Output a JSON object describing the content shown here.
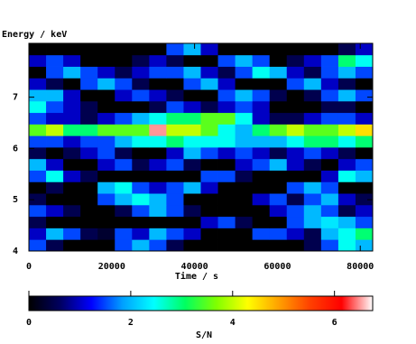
{
  "chart_data": {
    "type": "heatmap",
    "ylabel": "Energy / keV",
    "xlabel": "Time / s",
    "colorbar_label": "S/N",
    "xlim": [
      0,
      83000
    ],
    "ylim": [
      4,
      8.05
    ],
    "xticks": [
      0,
      20000,
      40000,
      60000,
      80000
    ],
    "yticks": [
      4,
      5,
      6,
      7
    ],
    "clim": [
      0,
      6.75
    ],
    "cticks": [
      0,
      2,
      4,
      6
    ],
    "colormap": [
      "#000000",
      "#000060",
      "#0000ff",
      "#00a0ff",
      "#00ffff",
      "#00ff60",
      "#80ff00",
      "#ffff00",
      "#ffa000",
      "#ff4000",
      "#ff0000",
      "#ffffff"
    ],
    "xbins": [
      0,
      4150,
      8300,
      12450,
      16600,
      20750,
      24900,
      29050,
      33200,
      37350,
      41500,
      45650,
      49800,
      53950,
      58100,
      62250,
      66400,
      70550,
      74700,
      78850,
      83000
    ],
    "ybins": [
      4,
      4.225,
      4.45,
      4.675,
      4.9,
      5.125,
      5.35,
      5.575,
      5.8,
      6.025,
      6.25,
      6.475,
      6.7,
      6.925,
      7.15,
      7.375,
      7.6,
      7.825,
      8.05
    ],
    "z": [
      [
        1.5,
        0.5,
        0,
        0,
        0,
        1.5,
        2,
        1.5,
        0.5,
        0,
        0,
        0,
        0,
        0,
        0,
        0,
        0.5,
        1.5,
        2.5,
        2
      ],
      [
        1,
        2,
        1.5,
        0.5,
        0.3,
        1.5,
        1,
        2,
        1.5,
        1,
        0,
        0,
        0,
        1.5,
        1.5,
        1,
        0.5,
        2,
        2.5,
        3
      ],
      [
        0.5,
        0,
        0,
        0,
        0,
        0,
        0,
        0,
        0,
        0,
        1,
        1.5,
        0.5,
        0,
        0,
        1.5,
        2,
        2.3,
        2,
        1.5
      ],
      [
        1.5,
        1,
        0.5,
        0,
        0,
        0.5,
        1.5,
        2,
        1.5,
        0.5,
        0,
        0,
        0,
        0,
        1,
        1.5,
        2,
        1.5,
        0.5,
        1
      ],
      [
        0.5,
        0,
        0,
        0,
        1.5,
        2,
        2.5,
        2,
        1.5,
        0,
        0,
        0,
        0,
        1,
        1.5,
        0.5,
        1.5,
        2,
        1,
        0.5
      ],
      [
        0,
        0.5,
        0,
        0,
        2,
        2.5,
        1.5,
        1,
        1.5,
        2,
        1,
        0,
        0,
        0,
        0,
        1.5,
        2,
        1.5,
        0,
        0
      ],
      [
        1.5,
        2.5,
        1,
        0.5,
        0,
        0,
        0,
        0,
        0,
        0,
        1.5,
        1.5,
        0.5,
        0,
        0,
        0,
        0,
        1,
        2.5,
        2
      ],
      [
        2,
        1,
        0,
        0,
        1,
        1.5,
        0.5,
        1,
        1.5,
        0.5,
        0,
        0,
        1,
        1.5,
        2,
        1,
        0.5,
        0,
        1,
        1.5
      ],
      [
        0.5,
        0,
        0.5,
        1,
        1.5,
        0.5,
        0,
        0,
        1,
        2,
        1.5,
        1,
        1.5,
        1,
        0.5,
        1,
        1.5,
        1,
        0.5,
        0
      ],
      [
        1.5,
        1.5,
        1,
        1.5,
        1.5,
        2,
        2.5,
        2.5,
        3,
        2.5,
        2.5,
        2.5,
        2,
        2,
        2,
        2.5,
        3,
        3,
        2.5,
        3
      ],
      [
        3.5,
        4,
        3,
        3,
        3.5,
        3.5,
        3.5,
        6.5,
        4,
        4,
        3.5,
        2.5,
        2,
        3,
        3.5,
        4,
        3.5,
        3.5,
        4,
        4.5
      ],
      [
        1.5,
        1,
        1,
        0.5,
        1,
        1.5,
        2,
        2.5,
        3,
        3,
        3.5,
        3.5,
        2.5,
        1,
        0.5,
        0.5,
        1,
        1.5,
        1.5,
        1
      ],
      [
        2.5,
        1.5,
        1,
        0.5,
        0,
        0,
        0,
        0.5,
        1.5,
        1,
        0.5,
        1,
        1.5,
        1,
        0,
        0,
        0,
        0.5,
        0.5,
        0
      ],
      [
        2,
        2,
        1,
        0,
        0,
        1,
        1.5,
        1,
        0.5,
        0,
        0,
        1.5,
        2,
        1.5,
        0.5,
        0,
        0.5,
        1.5,
        2,
        1.5
      ],
      [
        1,
        0.5,
        0,
        1.5,
        2,
        1.5,
        0.5,
        0,
        0,
        1.5,
        2,
        1,
        0,
        0,
        0,
        1.5,
        2,
        1,
        0.5,
        0
      ],
      [
        0,
        1.5,
        2,
        1.5,
        1,
        0.5,
        1,
        1.5,
        1.5,
        2,
        1,
        0.5,
        1.5,
        2.5,
        2,
        1,
        0.5,
        1.5,
        2,
        1.5
      ],
      [
        1,
        1.5,
        1,
        0,
        0,
        0,
        0.5,
        1,
        0.5,
        0,
        0,
        1.5,
        2,
        1.5,
        0,
        0.5,
        1,
        1.5,
        3,
        2.5
      ],
      [
        0,
        0,
        0,
        0,
        0,
        0,
        0,
        0,
        1.5,
        2,
        1,
        0,
        0,
        0,
        0,
        0,
        0,
        0,
        0.5,
        1
      ]
    ]
  }
}
